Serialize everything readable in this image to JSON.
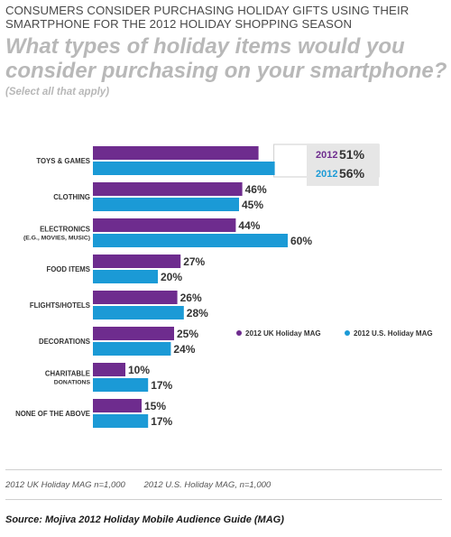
{
  "header": {
    "headline_line1": "CONSUMERS CONSIDER PURCHASING HOLIDAY GIFTS USING THEIR",
    "headline_line2": "SMARTPHONE FOR THE 2012 HOLIDAY SHOPPING SEASON",
    "question_line1": "What types of holiday items would you",
    "question_line2": "consider purchasing on your smartphone?",
    "note": "(Select all that apply)"
  },
  "chart_data": {
    "type": "bar",
    "orientation": "horizontal",
    "categories": [
      [
        "TOYS & GAMES"
      ],
      [
        "CLOTHING"
      ],
      [
        "ELECTRONICS",
        "(E.G., MOVIES, MUSIC)"
      ],
      [
        "FOOD ITEMS"
      ],
      [
        "FLIGHTS/HOTELS"
      ],
      [
        "DECORATIONS"
      ],
      [
        "CHARITABLE",
        "DONATIONS"
      ],
      [
        "NONE OF THE ABOVE"
      ]
    ],
    "series": [
      {
        "name": "2012 UK Holiday MAG",
        "color": "#6e2c8e",
        "values": [
          51,
          46,
          44,
          27,
          26,
          25,
          10,
          15
        ]
      },
      {
        "name": "2012 U.S. Holiday MAG",
        "color": "#1b9ad6",
        "values": [
          56,
          45,
          60,
          20,
          28,
          24,
          17,
          17
        ]
      }
    ],
    "value_suffix": "%",
    "callout": [
      {
        "year": "2012",
        "value": "51%",
        "series": 0
      },
      {
        "year": "2012",
        "value": "56%",
        "series": 1
      }
    ],
    "legend_position": "right"
  },
  "footer": {
    "sample_uk": "2012 UK Holiday MAG n=1,000",
    "sample_us": "2012 U.S. Holiday MAG, n=1,000",
    "source": "Source: Mojiva 2012 Holiday Mobile Audience Guide (MAG)"
  }
}
